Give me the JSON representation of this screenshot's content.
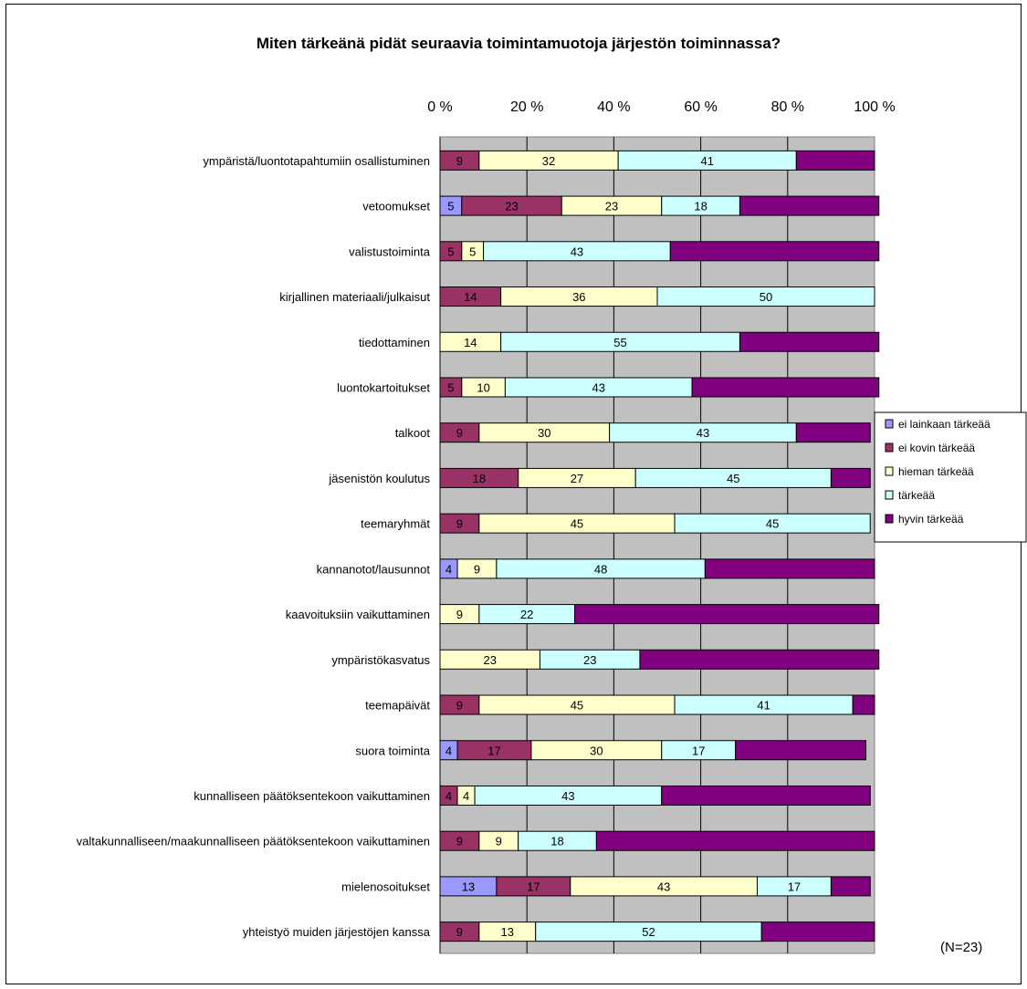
{
  "chart_data": {
    "type": "bar",
    "orientation": "horizontal",
    "stacked": "percent",
    "title": "Miten tärkeänä pidät seuraavia toimintamuotoja järjestön toiminnassa?",
    "x_ticks": [
      "0 %",
      "20 %",
      "40 %",
      "60 %",
      "80 %",
      "100 %"
    ],
    "xlim": [
      0,
      100
    ],
    "note": "(N=23)",
    "legend_position": "right",
    "categories": [
      "ympäristä/luontotapahtumiin osallistuminen",
      "vetoomukset",
      "valistustoiminta",
      "kirjallinen materiaali/julkaisut",
      "tiedottaminen",
      "luontokartoitukset",
      "talkoot",
      "jäsenistön koulutus",
      "teemaryhmät",
      "kannanotot/lausunnot",
      "kaavoituksiin vaikuttaminen",
      "ympäristökasvatus",
      "teemapäivät",
      "suora toiminta",
      "kunnalliseen päätöksentekoon vaikuttaminen",
      "valtakunnalliseen/maakunnalliseen päätöksentekoon vaikuttaminen",
      "mielenosoitukset",
      "yhteistyö muiden järjestöjen kanssa"
    ],
    "series": [
      {
        "name": "ei lainkaan tärkeää",
        "color": "#9999FF",
        "label_color": "#000000",
        "values": [
          0,
          5,
          0,
          0,
          0,
          0,
          0,
          0,
          0,
          4,
          0,
          0,
          0,
          4,
          0,
          0,
          13,
          0
        ]
      },
      {
        "name": "ei kovin tärkeää",
        "color": "#993366",
        "label_color": "#000000",
        "values": [
          9,
          23,
          5,
          14,
          0,
          5,
          9,
          18,
          9,
          0,
          0,
          0,
          9,
          17,
          4,
          9,
          17,
          9
        ]
      },
      {
        "name": "hieman tärkeää",
        "color": "#FFFFCC",
        "label_color": "#000000",
        "values": [
          32,
          23,
          5,
          36,
          14,
          10,
          30,
          27,
          45,
          9,
          9,
          23,
          45,
          30,
          4,
          9,
          43,
          13
        ]
      },
      {
        "name": "tärkeää",
        "color": "#CCFFFF",
        "label_color": "#000000",
        "values": [
          41,
          18,
          43,
          50,
          55,
          43,
          43,
          45,
          45,
          48,
          22,
          23,
          41,
          17,
          43,
          18,
          17,
          52
        ]
      },
      {
        "name": "hyvin tärkeää",
        "color": "#800080",
        "label_color": "#800080",
        "values": [
          18,
          32,
          48,
          0,
          32,
          43,
          17,
          9,
          0,
          39,
          70,
          55,
          5,
          30,
          48,
          64,
          9,
          26
        ]
      }
    ],
    "plot_background": "#C0C0C0",
    "gridlines": true
  }
}
